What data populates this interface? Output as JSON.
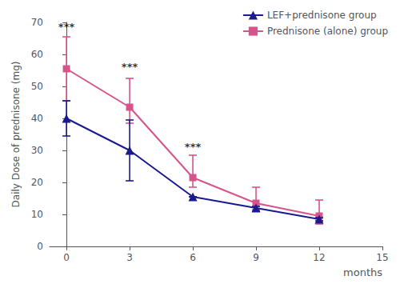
{
  "chart_data": {
    "type": "line",
    "x": [
      0,
      3,
      6,
      9,
      12
    ],
    "series": [
      {
        "name": "LEF+prednisone group",
        "color": "#1a1a8e",
        "marker": "triangle",
        "values": [
          40,
          30,
          15.5,
          12,
          8.5
        ],
        "err_low": [
          5.5,
          9.5,
          0,
          1,
          0.5
        ],
        "err_high": [
          5.5,
          9.5,
          0,
          0.5,
          0.5
        ]
      },
      {
        "name": "Prednisone (alone) group",
        "color": "#d6548a",
        "marker": "square",
        "values": [
          55.5,
          43.5,
          21.5,
          13.5,
          9.5
        ],
        "err_low": [
          10,
          5,
          3,
          2,
          2.5
        ],
        "err_high": [
          10,
          9,
          7,
          5,
          5
        ]
      }
    ],
    "annotations": [
      {
        "text": "***",
        "x": 0,
        "y": 67
      },
      {
        "text": "***",
        "x": 3,
        "y": 54.5
      },
      {
        "text": "***",
        "x": 6,
        "y": 29.5
      }
    ],
    "xlabel": "months",
    "ylabel": "Daily Dose of prednisone (mg)",
    "xlim": [
      -0.8,
      15
    ],
    "xticks": [
      0,
      3,
      6,
      9,
      12,
      15
    ],
    "ylim": [
      0,
      70
    ],
    "yticks": [
      0,
      10,
      20,
      30,
      40,
      50,
      60,
      70
    ],
    "grid": false,
    "legend": "upper right"
  }
}
